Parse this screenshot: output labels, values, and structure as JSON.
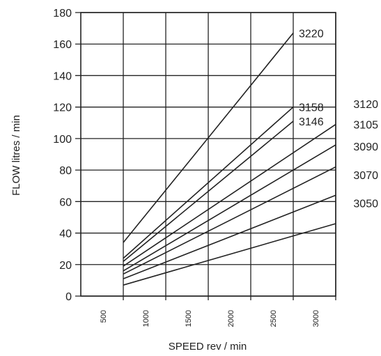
{
  "chart_data": {
    "type": "line",
    "xlabel": "SPEED rev / min",
    "ylabel": "FLOW litres / min",
    "xlim": [
      0,
      3000
    ],
    "ylim": [
      0,
      180
    ],
    "x_ticks": [
      500,
      1000,
      1500,
      2000,
      2500,
      3000
    ],
    "y_ticks": [
      0,
      20,
      40,
      60,
      80,
      100,
      120,
      140,
      160,
      180
    ],
    "grid": true,
    "line_color": "#222222",
    "series": [
      {
        "name": "3220",
        "x": [
          500,
          2500
        ],
        "y": [
          34,
          167
        ]
      },
      {
        "name": "3158",
        "x": [
          500,
          2500
        ],
        "y": [
          24,
          120
        ]
      },
      {
        "name": "3146",
        "x": [
          500,
          2500
        ],
        "y": [
          22,
          111
        ]
      },
      {
        "name": "3120",
        "x": [
          500,
          3000
        ],
        "y": [
          19,
          109
        ]
      },
      {
        "name": "3105",
        "x": [
          500,
          3000
        ],
        "y": [
          16,
          96
        ]
      },
      {
        "name": "3090",
        "x": [
          500,
          3000
        ],
        "y": [
          14,
          82
        ]
      },
      {
        "name": "3070",
        "x": [
          500,
          3000
        ],
        "y": [
          11,
          64
        ]
      },
      {
        "name": "3050",
        "x": [
          500,
          3000
        ],
        "y": [
          7,
          46
        ]
      }
    ]
  }
}
